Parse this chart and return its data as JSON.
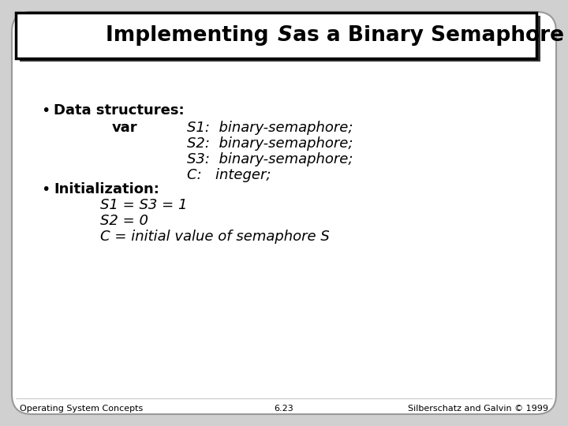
{
  "bg_color": "#d0d0d0",
  "slide_bg": "#ffffff",
  "title_bg": "#ffffff",
  "title_border": "#000000",
  "title_fontsize": 19,
  "body_fontsize": 13,
  "small_fontsize": 8,
  "footer_left": "Operating System Concepts",
  "footer_center": "6.23",
  "footer_right": "Silberschatz and Galvin © 1999",
  "bullet1_label": "Data structures:",
  "bullet1_var": "var",
  "bullet1_lines": [
    "S1:  binary-semaphore;",
    "S2:  binary-semaphore;",
    "S3:  binary-semaphore;",
    "C:   integer;"
  ],
  "bullet2_label": "Initialization:",
  "bullet2_lines": [
    "S1 = S3 = 1",
    "S2 = 0",
    "C = initial value of semaphore S"
  ]
}
